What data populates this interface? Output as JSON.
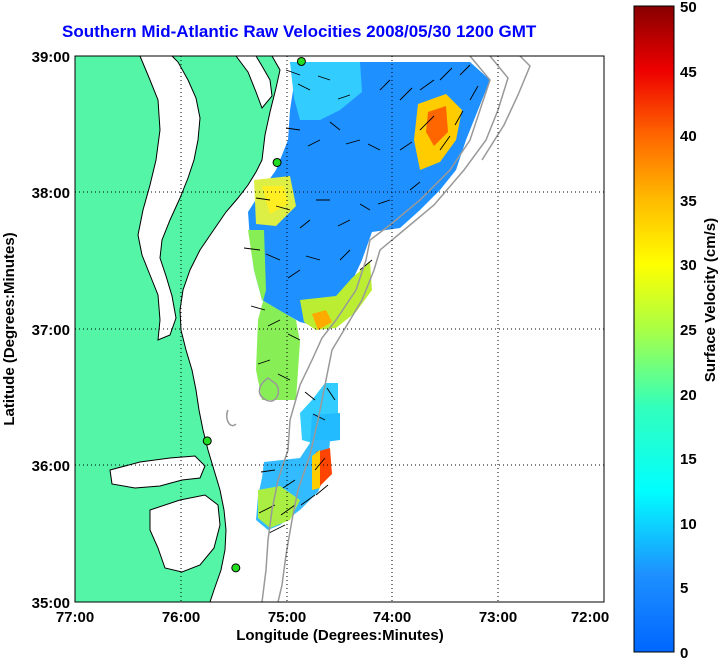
{
  "title": "Southern Mid-Atlantic Raw Velocities 2008/05/30 1200 GMT",
  "x_axis": {
    "label": "Longitude (Degrees:Minutes)",
    "ticks": [
      "77:00",
      "76:00",
      "75:00",
      "74:00",
      "73:00",
      "72:00"
    ]
  },
  "y_axis": {
    "label": "Latitude (Degrees:Minutes)",
    "ticks": [
      "39:00",
      "38:00",
      "37:00",
      "36:00",
      "35:00"
    ]
  },
  "colorbar": {
    "label": "Surface Velocity (cm/s)",
    "ticks": [
      "50",
      "45",
      "40",
      "35",
      "30",
      "25",
      "20",
      "15",
      "10",
      "5",
      "0"
    ],
    "min": 0,
    "max": 50
  },
  "map_extent": {
    "lon_min": -77,
    "lon_max": -72,
    "lat_min": 35,
    "lat_max": 39
  },
  "colors": {
    "land": "#55f5a8",
    "title": "#0000ff",
    "bathymetry": "#999999",
    "station": "#22dd22"
  },
  "stations": [
    {
      "lon": -74.86,
      "lat": 38.96
    },
    {
      "lon": -75.09,
      "lat": 38.22
    },
    {
      "lon": -75.75,
      "lat": 36.18
    },
    {
      "lon": -75.48,
      "lat": 35.25
    }
  ]
}
